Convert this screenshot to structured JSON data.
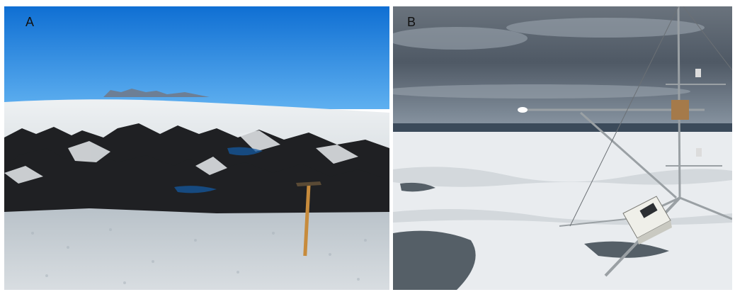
{
  "panels": [
    {
      "label": "A",
      "scene": "glacier-ice-with-dark-debris-and-ice-axe",
      "colors": {
        "sky": "#1e88e8",
        "ice": "#cfd6dc",
        "debris": "#1e1f22",
        "axe_handle": "#c78b3c"
      }
    },
    {
      "label": "B",
      "scene": "ice-sheet-surface-with-weather-station",
      "colors": {
        "sky": "#55606c",
        "ice": "#e9ecef",
        "water": "#4f5a62",
        "mast": "#9aa0a4"
      }
    }
  ]
}
